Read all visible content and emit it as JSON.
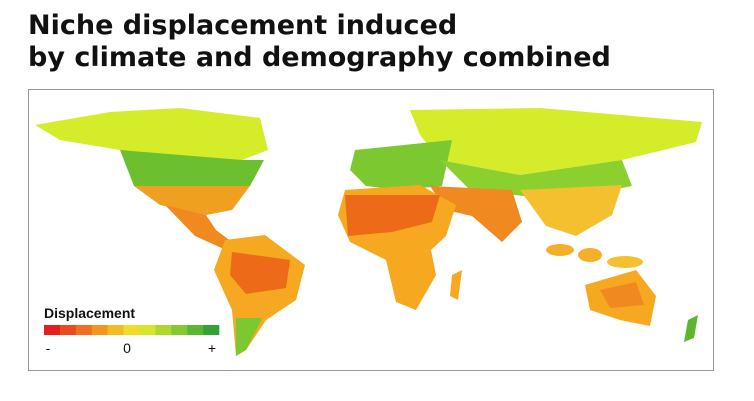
{
  "header": {
    "title_lines": [
      "Niche displacement induced",
      "by climate and demography combined"
    ]
  },
  "legend": {
    "title": "Displacement",
    "colors": [
      "#e3201c",
      "#ea4a1c",
      "#f07020",
      "#f4961e",
      "#f5bc22",
      "#f2dc2a",
      "#d6e62c",
      "#aed82e",
      "#86c830",
      "#5cb632",
      "#34a234"
    ],
    "labels": [
      "-",
      "0",
      "+"
    ]
  }
}
